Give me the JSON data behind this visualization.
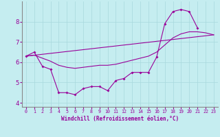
{
  "xlabel": "Windchill (Refroidissement éolien,°C)",
  "background_color": "#c5edf0",
  "line_color": "#990099",
  "x_values": [
    0,
    1,
    2,
    3,
    4,
    5,
    6,
    7,
    8,
    9,
    10,
    11,
    12,
    13,
    14,
    15,
    16,
    17,
    18,
    19,
    20,
    21,
    22,
    23
  ],
  "series1": [
    6.3,
    6.5,
    5.8,
    5.65,
    4.5,
    4.5,
    4.4,
    4.7,
    4.8,
    4.8,
    4.6,
    5.1,
    5.2,
    5.5,
    5.5,
    5.5,
    6.25,
    7.9,
    8.5,
    8.6,
    8.5,
    7.7,
    null,
    null
  ],
  "series_straight": [
    [
      0,
      6.3
    ],
    [
      23,
      7.35
    ]
  ],
  "series_smooth": [
    6.3,
    6.35,
    6.2,
    6.05,
    5.85,
    5.75,
    5.7,
    5.75,
    5.8,
    5.85,
    5.85,
    5.9,
    6.0,
    6.1,
    6.2,
    6.3,
    6.5,
    6.85,
    7.2,
    7.4,
    7.5,
    7.5,
    7.45,
    7.35
  ],
  "ylim": [
    3.8,
    9.0
  ],
  "xlim": [
    -0.5,
    23.5
  ],
  "yticks": [
    4,
    5,
    6,
    7,
    8
  ],
  "xticks": [
    0,
    1,
    2,
    3,
    4,
    5,
    6,
    7,
    8,
    9,
    10,
    11,
    12,
    13,
    14,
    15,
    16,
    17,
    18,
    19,
    20,
    21,
    22,
    23
  ],
  "grid_color": "#a8d8dc",
  "figsize": [
    3.2,
    2.0
  ],
  "dpi": 100
}
